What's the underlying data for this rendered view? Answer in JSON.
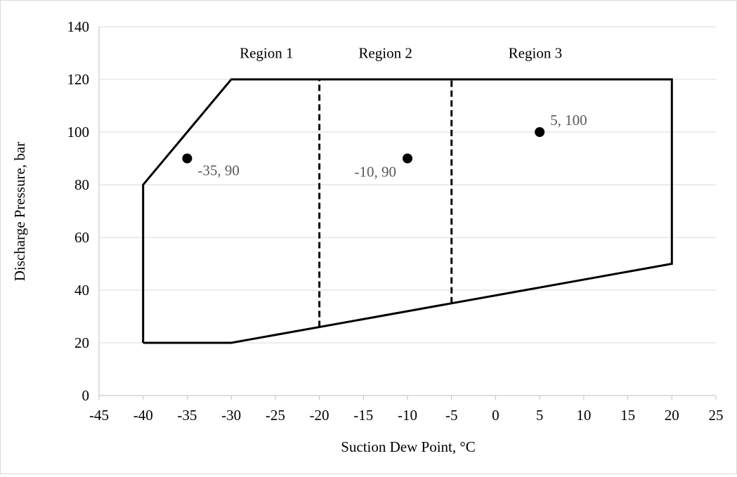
{
  "chart_data": {
    "type": "scatter",
    "title": "",
    "xlabel": "Suction Dew Point, °C",
    "ylabel": "Discharge Pressure, bar",
    "xlim": [
      -45,
      25
    ],
    "ylim": [
      0,
      140
    ],
    "x_ticks": [
      -45,
      -40,
      -35,
      -30,
      -25,
      -20,
      -15,
      -10,
      -5,
      0,
      5,
      10,
      15,
      20,
      25
    ],
    "y_ticks": [
      0,
      20,
      40,
      60,
      80,
      100,
      120,
      140
    ],
    "grid": "horizontal",
    "envelope": [
      [
        -40,
        20
      ],
      [
        -30,
        20
      ],
      [
        20,
        50
      ],
      [
        20,
        120
      ],
      [
        -30,
        120
      ],
      [
        -40,
        80
      ],
      [
        -40,
        20
      ]
    ],
    "dividers": [
      {
        "x": -20,
        "y_from": 26,
        "y_to": 120
      },
      {
        "x": -5,
        "y_from": 35,
        "y_to": 120
      }
    ],
    "regions": [
      {
        "label": "Region 1",
        "x": -26,
        "y": 130
      },
      {
        "label": "Region 2",
        "x": -12.5,
        "y": 130
      },
      {
        "label": "Region 3",
        "x": 4.5,
        "y": 130
      }
    ],
    "points": [
      {
        "x": -35,
        "y": 90,
        "label": "-35, 90",
        "label_side": "right"
      },
      {
        "x": -10,
        "y": 90,
        "label": "-10, 90",
        "label_side": "left"
      },
      {
        "x": 5,
        "y": 100,
        "label": "5, 100",
        "label_side": "right"
      }
    ]
  }
}
